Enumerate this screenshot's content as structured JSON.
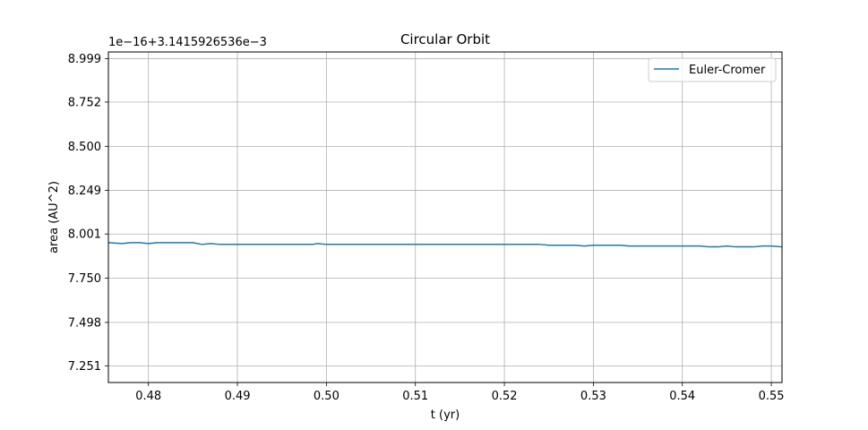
{
  "chart_data": {
    "type": "line",
    "title": "Circular Orbit",
    "xlabel": "t (yr)",
    "ylabel": "area (AU^2)",
    "offset_label": "1e−16+3.1415926536e−3",
    "xlim": [
      0.4755,
      0.5512
    ],
    "ylim": [
      7.156,
      9.037
    ],
    "xticks": [
      0.48,
      0.49,
      0.5,
      0.51,
      0.52,
      0.53,
      0.54,
      0.55
    ],
    "xtick_labels": [
      "0.48",
      "0.49",
      "0.50",
      "0.51",
      "0.52",
      "0.53",
      "0.54",
      "0.55"
    ],
    "yticks": [
      7.251,
      7.498,
      7.75,
      8.001,
      8.249,
      8.5,
      8.752,
      8.999
    ],
    "ytick_labels": [
      "7.251",
      "7.498",
      "7.750",
      "8.001",
      "8.249",
      "8.500",
      "8.752",
      "8.999"
    ],
    "grid": true,
    "legend_position": "top-right",
    "series": [
      {
        "name": "Euler-Cromer",
        "color": "#1f77b4",
        "x": [
          0.4755,
          0.477,
          0.478,
          0.479,
          0.48,
          0.481,
          0.482,
          0.483,
          0.484,
          0.485,
          0.486,
          0.487,
          0.488,
          0.49,
          0.495,
          0.4985,
          0.499,
          0.5,
          0.505,
          0.51,
          0.515,
          0.52,
          0.524,
          0.525,
          0.528,
          0.529,
          0.53,
          0.533,
          0.534,
          0.54,
          0.542,
          0.543,
          0.544,
          0.545,
          0.546,
          0.548,
          0.549,
          0.55,
          0.5512
        ],
        "y": [
          7.952,
          7.947,
          7.952,
          7.952,
          7.947,
          7.952,
          7.952,
          7.952,
          7.952,
          7.952,
          7.942,
          7.947,
          7.942,
          7.942,
          7.942,
          7.942,
          7.947,
          7.942,
          7.942,
          7.942,
          7.942,
          7.942,
          7.942,
          7.937,
          7.937,
          7.933,
          7.937,
          7.937,
          7.933,
          7.933,
          7.933,
          7.928,
          7.928,
          7.933,
          7.928,
          7.928,
          7.933,
          7.933,
          7.928
        ]
      }
    ]
  }
}
